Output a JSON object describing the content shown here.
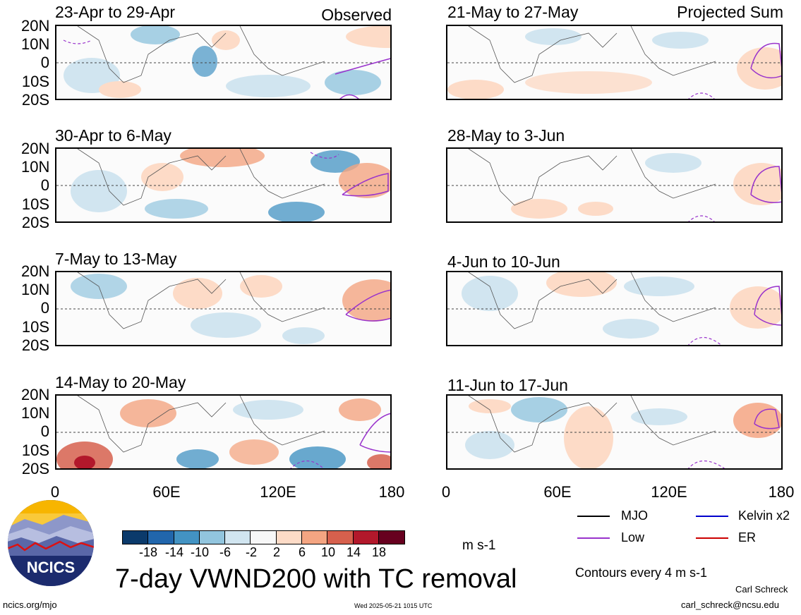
{
  "panels": [
    {
      "title": "23-Apr to 29-Apr",
      "tag": "Observed"
    },
    {
      "title": "30-Apr to 6-May",
      "tag": ""
    },
    {
      "title": "7-May to 13-May",
      "tag": ""
    },
    {
      "title": "14-May to 20-May",
      "tag": ""
    },
    {
      "title": "21-May to 27-May",
      "tag": "Projected Sum"
    },
    {
      "title": "28-May to 3-Jun",
      "tag": ""
    },
    {
      "title": "4-Jun to 10-Jun",
      "tag": ""
    },
    {
      "title": "11-Jun to 17-Jun",
      "tag": ""
    }
  ],
  "lat_labels": [
    "20N",
    "10N",
    "0",
    "10S",
    "20S"
  ],
  "lon_labels": [
    "0",
    "60E",
    "120E",
    "180"
  ],
  "colorbar": {
    "colors": [
      "#0b3a6b",
      "#2166ac",
      "#4393c3",
      "#92c5de",
      "#d1e5f0",
      "#f7f7f7",
      "#fddbc7",
      "#f4a582",
      "#d6604d",
      "#b2182b",
      "#67001f"
    ],
    "labels": [
      "-18",
      "-14",
      "-10",
      "-6",
      "-2",
      "2",
      "6",
      "10",
      "14",
      "18"
    ],
    "units": "m s-1"
  },
  "title": "7-day VWND200 with TC removal",
  "legend": [
    {
      "label": "MJO",
      "color": "#000000"
    },
    {
      "label": "Kelvin x2",
      "color": "#0000cc"
    },
    {
      "label": "Low",
      "color": "#9933cc"
    },
    {
      "label": "ER",
      "color": "#cc0000"
    }
  ],
  "contours_note": "Contours every 4 m s-1",
  "logo_text": "NCICS",
  "footer": {
    "url": "ncics.org/mjo",
    "timestamp": "Wed 2025-05-21 1015 UTC",
    "author": "Carl Schreck",
    "email": "carl_schreck@ncsu.edu"
  }
}
